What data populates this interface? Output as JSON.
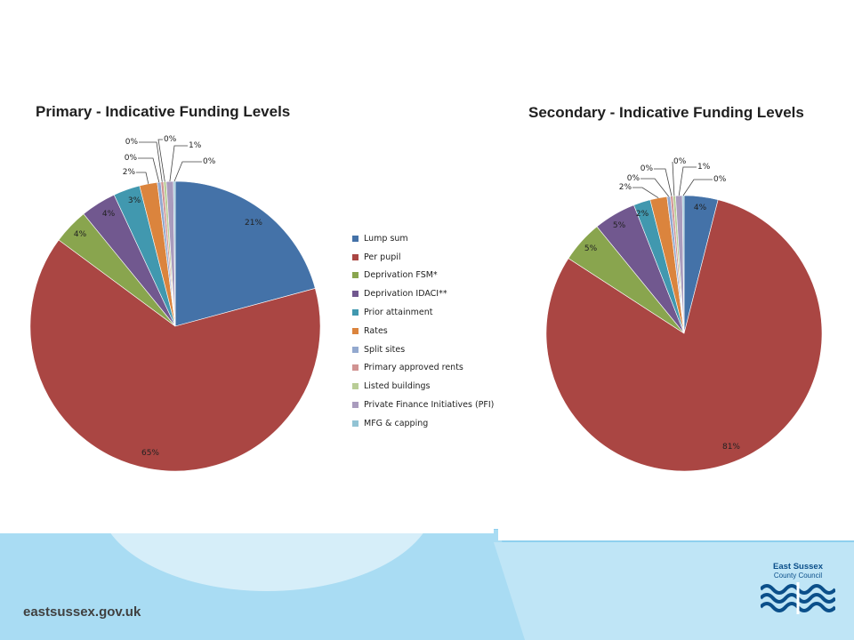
{
  "colors": {
    "slices": [
      "#4472a8",
      "#aa4643",
      "#89a54e",
      "#71588f",
      "#4198af",
      "#db843d",
      "#93a9cf",
      "#d19392",
      "#b9cd96",
      "#a99bbd",
      "#92c3d4"
    ],
    "page_bg": "#ffffff",
    "light_blue": "#8fd0ee",
    "brand_blue": "#0b4f8a"
  },
  "legend": {
    "items": [
      "Lump sum",
      "Per pupil",
      "Deprivation FSM*",
      "Deprivation IDACI**",
      "Prior attainment",
      "Rates",
      "Split sites",
      "Primary approved rents",
      "Listed buildings",
      "Private Finance Initiatives (PFI)",
      "MFG & capping"
    ]
  },
  "chart_data": [
    {
      "type": "pie",
      "title": "Primary - Indicative Funding Levels",
      "categories": [
        "Lump sum",
        "Per pupil",
        "Deprivation FSM*",
        "Deprivation IDACI**",
        "Prior attainment",
        "Rates",
        "Split sites",
        "Primary approved rents",
        "Listed buildings",
        "Private Finance Initiatives (PFI)",
        "MFG & capping"
      ],
      "values": [
        21,
        65,
        4,
        4,
        3,
        2,
        0.4,
        0.3,
        0.3,
        0.8,
        0.2
      ],
      "data_labels": [
        "21%",
        "65%",
        "4%",
        "4%",
        "3%",
        "2%",
        "0%",
        "0%",
        "0%",
        "1%",
        "0%"
      ],
      "legend_position": "right"
    },
    {
      "type": "pie",
      "title": "Secondary - Indicative Funding  Levels",
      "categories": [
        "Lump sum",
        "Per pupil",
        "Deprivation FSM*",
        "Deprivation IDACI**",
        "Prior attainment",
        "Rates",
        "Split sites",
        "Primary approved rents",
        "Listed buildings",
        "Private Finance Initiatives (PFI)",
        "MFG & capping"
      ],
      "values": [
        4,
        81,
        5,
        5,
        2,
        2,
        0.4,
        0.3,
        0.3,
        0.8,
        0.2
      ],
      "data_labels": [
        "4%",
        "81%",
        "5%",
        "5%",
        "2%",
        "2%",
        "0%",
        "0%",
        "0%",
        "1%",
        "0%"
      ],
      "legend_position": "none"
    }
  ],
  "footer": {
    "website": "eastsussex.gov.uk",
    "logo_line1": "East Sussex",
    "logo_line2": "County Council"
  }
}
